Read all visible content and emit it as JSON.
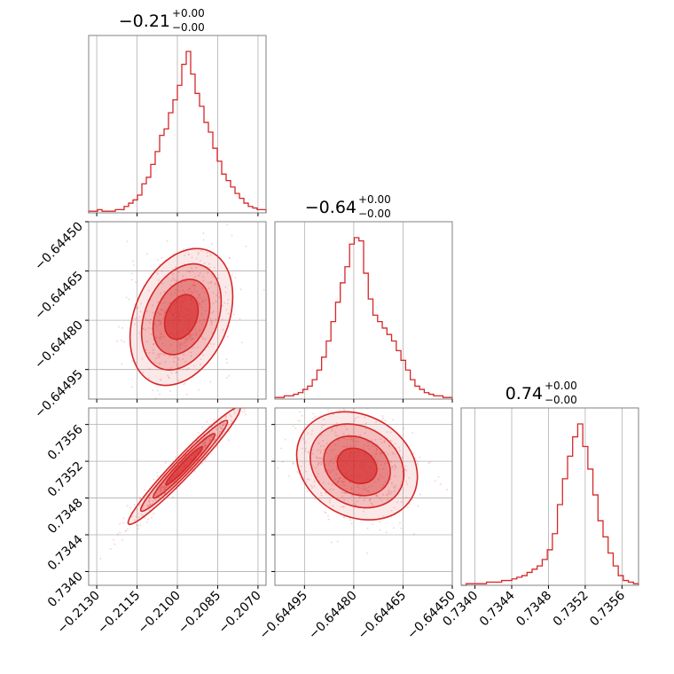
{
  "chart_data": {
    "type": "corner",
    "color": "#d62728",
    "grid": true,
    "parameters": [
      {
        "title_value": "−0.21",
        "title_plus": "+0.00",
        "title_minus": "−0.00",
        "range": [
          -0.2133,
          -0.2067
        ],
        "ticks": [
          -0.213,
          -0.2115,
          -0.21,
          -0.2085,
          -0.207
        ],
        "tick_labels": [
          "−0.2130",
          "−0.2115",
          "−0.2100",
          "−0.2085",
          "−0.2070"
        ],
        "histogram": [
          1,
          1,
          2,
          1,
          1,
          1,
          2,
          2,
          4,
          6,
          8,
          11,
          18,
          22,
          30,
          38,
          48,
          52,
          62,
          70,
          79,
          92,
          100,
          86,
          74,
          66,
          56,
          50,
          40,
          32,
          24,
          20,
          16,
          12,
          9,
          6,
          4,
          3,
          2,
          2
        ]
      },
      {
        "title_value": "−0.64",
        "title_plus": "+0.00",
        "title_minus": "−0.00",
        "range": [
          -0.64504,
          -0.6445
        ],
        "ticks": [
          -0.64495,
          -0.6448,
          -0.64465,
          -0.6445
        ],
        "tick_labels": [
          "−0.64495",
          "−0.64480",
          "−0.64465",
          "−0.64450"
        ],
        "tick_labels_y": [
          "−0.64450",
          "−0.64465",
          "−0.64480",
          "−0.64495"
        ],
        "ticks_y": [
          -0.6445,
          -0.64465,
          -0.6448,
          -0.64495
        ],
        "histogram": [
          1,
          1,
          2,
          2,
          3,
          4,
          6,
          8,
          12,
          18,
          26,
          36,
          48,
          60,
          72,
          82,
          96,
          100,
          98,
          78,
          62,
          52,
          48,
          44,
          40,
          36,
          30,
          24,
          18,
          12,
          8,
          6,
          4,
          3,
          2,
          2,
          1,
          1
        ]
      },
      {
        "title_value": "0.74",
        "title_plus": "+0.00",
        "title_minus": "−0.00",
        "range": [
          0.73385,
          0.73578
        ],
        "ticks": [
          0.734,
          0.7344,
          0.7348,
          0.7352,
          0.7356
        ],
        "tick_labels": [
          "0.7340",
          "0.7344",
          "0.7348",
          "0.7352",
          "0.7356"
        ],
        "tick_labels_y": [
          "0.7340",
          "0.7344",
          "0.7348",
          "0.7352",
          "0.7356"
        ],
        "ticks_y": [
          0.734,
          0.7344,
          0.7348,
          0.7352,
          0.7356
        ],
        "histogram": [
          0,
          1,
          1,
          1,
          1,
          2,
          2,
          2,
          3,
          3,
          4,
          5,
          6,
          8,
          10,
          12,
          16,
          22,
          32,
          50,
          66,
          80,
          92,
          100,
          86,
          72,
          56,
          40,
          30,
          20,
          12,
          6,
          3,
          2,
          1
        ]
      }
    ],
    "correlations": [
      {
        "x_param": 0,
        "y_param": 1,
        "mean": [
          -0.20985,
          -0.64479
        ],
        "sd": [
          0.00078,
          8.5e-05
        ],
        "rho": 0.3
      },
      {
        "x_param": 0,
        "y_param": 2,
        "mean": [
          -0.20975,
          0.73515
        ],
        "sd": [
          0.00085,
          0.00026
        ],
        "rho": 0.97
      },
      {
        "x_param": 1,
        "y_param": 2,
        "mean": [
          -0.64479,
          0.73515
        ],
        "sd": [
          7.5e-05,
          0.00024
        ],
        "rho": -0.2
      }
    ]
  }
}
